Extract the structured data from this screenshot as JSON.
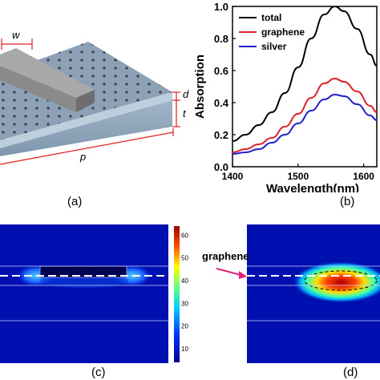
{
  "panel_a": {
    "caption": "(a)",
    "dim_w": "w",
    "dim_d": "d",
    "dim_t": "t",
    "dim_p": "p"
  },
  "panel_b": {
    "caption": "(b)",
    "chart_data": {
      "type": "line",
      "xlabel": "Wavelength(nm)",
      "ylabel": "Absorption",
      "xlim": [
        1400,
        1620
      ],
      "ylim": [
        0.0,
        1.0
      ],
      "x_ticks": [
        1400,
        1500,
        1600
      ],
      "x_tick_labels": [
        "1400",
        "1500",
        "1600"
      ],
      "y_ticks": [
        0.0,
        0.2,
        0.4,
        0.6,
        0.8,
        1.0
      ],
      "y_tick_labels": [
        "0.0",
        "0.2",
        "0.4",
        "0.6",
        "0.8",
        "1.0"
      ],
      "legend_position": "top-left",
      "grid": false,
      "series": [
        {
          "name": "total",
          "color": "#000000",
          "x": [
            1400,
            1420,
            1440,
            1460,
            1480,
            1500,
            1520,
            1540,
            1556,
            1570,
            1590,
            1610,
            1620
          ],
          "y": [
            0.16,
            0.2,
            0.26,
            0.34,
            0.46,
            0.62,
            0.8,
            0.95,
            1.0,
            0.97,
            0.86,
            0.7,
            0.63
          ]
        },
        {
          "name": "graphene",
          "color": "#e0202a",
          "x": [
            1400,
            1420,
            1440,
            1460,
            1480,
            1500,
            1520,
            1540,
            1556,
            1570,
            1590,
            1610,
            1620
          ],
          "y": [
            0.09,
            0.11,
            0.14,
            0.18,
            0.25,
            0.33,
            0.43,
            0.52,
            0.55,
            0.53,
            0.47,
            0.38,
            0.34
          ]
        },
        {
          "name": "silver",
          "color": "#2020c8",
          "x": [
            1400,
            1420,
            1440,
            1460,
            1480,
            1500,
            1520,
            1540,
            1556,
            1570,
            1590,
            1610,
            1620
          ],
          "y": [
            0.08,
            0.09,
            0.11,
            0.15,
            0.2,
            0.27,
            0.35,
            0.42,
            0.45,
            0.44,
            0.39,
            0.32,
            0.29
          ]
        }
      ]
    }
  },
  "panel_c": {
    "caption": "(c)",
    "colorbar": {
      "ticks": [
        10,
        20,
        30,
        40,
        50,
        60
      ],
      "tick_labels": [
        "10",
        "20",
        "30",
        "40",
        "50",
        "60"
      ],
      "min": 4,
      "max": 64
    }
  },
  "panel_d": {
    "caption": "(d)",
    "annotation": "graphene"
  }
}
